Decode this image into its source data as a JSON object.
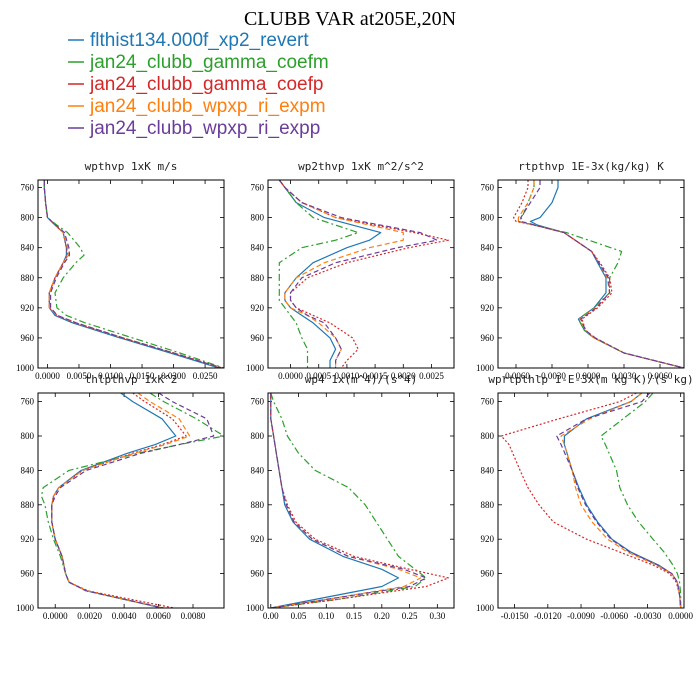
{
  "figure": {
    "title": "CLUBB VAR at205E,20N"
  },
  "legend": [
    {
      "label": "flthist134.000f_xp2_revert",
      "color": "#1f77b4",
      "dash": "solid"
    },
    {
      "label": "jan24_clubb_gamma_coefm",
      "color": "#2ca02c",
      "dash": "dashdot"
    },
    {
      "label": "jan24_clubb_gamma_coefp",
      "color": "#d62728",
      "dash": "dotted"
    },
    {
      "label": "jan24_clubb_wpxp_ri_expm",
      "color": "#ff7f0e",
      "dash": "dashed"
    },
    {
      "label": "jan24_clubb_wpxp_ri_expp",
      "color": "#6a3d9a",
      "dash": "dashed"
    }
  ],
  "chart_data": [
    {
      "type": "line",
      "title": "wpthvp  1xK m/s",
      "xlim": [
        -0.0015,
        0.028
      ],
      "ylim": [
        1000,
        750
      ],
      "xticks": [
        0.0,
        0.005,
        0.01,
        0.015,
        0.02,
        0.025
      ],
      "xtick_labels": [
        "0.0000",
        "0.0050",
        "0.0100",
        "0.0150",
        "0.0200",
        "0.0250"
      ],
      "yticks": [
        760,
        800,
        840,
        880,
        920,
        960,
        1000
      ],
      "ytick_labels": [
        "760",
        "800",
        "840",
        "880",
        "920",
        "960",
        "1000"
      ],
      "y": [
        750,
        760,
        780,
        800,
        810,
        820,
        840,
        850,
        860,
        880,
        900,
        920,
        930,
        940,
        960,
        980,
        1000
      ],
      "series": [
        {
          "values": [
            -0.0005,
            -0.0005,
            -0.0003,
            0.0,
            0.0012,
            0.0025,
            0.003,
            0.003,
            0.0025,
            0.0012,
            0.0003,
            0.0003,
            0.0012,
            0.004,
            0.0115,
            0.0195,
            0.0272
          ]
        },
        {
          "values": [
            -0.0005,
            -0.0005,
            -0.0003,
            0.0,
            0.0015,
            0.0032,
            0.0052,
            0.0058,
            0.0045,
            0.0025,
            0.0012,
            0.0015,
            0.003,
            0.006,
            0.0135,
            0.021,
            0.028
          ]
        },
        {
          "values": [
            -0.0005,
            -0.0005,
            -0.0003,
            0.0,
            0.0012,
            0.0025,
            0.003,
            0.0032,
            0.0025,
            0.0012,
            0.0003,
            0.0003,
            0.0015,
            0.0045,
            0.012,
            0.02,
            0.0278
          ]
        },
        {
          "values": [
            -0.0005,
            -0.0005,
            -0.0003,
            0.0,
            0.0012,
            0.0025,
            0.0032,
            0.0033,
            0.0025,
            0.0012,
            0.0003,
            0.0003,
            0.0015,
            0.0045,
            0.012,
            0.02,
            0.0276
          ]
        },
        {
          "values": [
            -0.0005,
            -0.0005,
            -0.0003,
            0.0,
            0.0013,
            0.0027,
            0.0034,
            0.0035,
            0.0027,
            0.0014,
            0.0005,
            0.0005,
            0.0016,
            0.0046,
            0.012,
            0.02,
            0.0276
          ]
        }
      ]
    },
    {
      "type": "line",
      "title": "wp2thvp  1xK m^2/s^2",
      "xlim": [
        -0.0004,
        0.0029
      ],
      "ylim": [
        1000,
        750
      ],
      "xticks": [
        0.0,
        0.0005,
        0.001,
        0.0015,
        0.002,
        0.0025
      ],
      "xtick_labels": [
        "0.0000",
        "0.0005",
        "0.0010",
        "0.0015",
        "0.0020",
        "0.0025"
      ],
      "yticks": [
        760,
        800,
        840,
        880,
        920,
        960,
        1000
      ],
      "ytick_labels": [
        "760",
        "800",
        "840",
        "880",
        "920",
        "960",
        "1000"
      ],
      "y": [
        750,
        760,
        780,
        800,
        810,
        820,
        830,
        840,
        860,
        880,
        900,
        910,
        920,
        930,
        940,
        960,
        975,
        990,
        1000
      ],
      "series": [
        {
          "values": [
            -0.0002,
            -0.0001,
            0.0001,
            0.0006,
            0.0011,
            0.0016,
            0.0014,
            0.001,
            0.0004,
            0.0001,
            -0.0001,
            -0.0001,
            0.0,
            0.0002,
            0.0004,
            0.0007,
            0.0008,
            0.0007,
            0.0007
          ]
        },
        {
          "values": [
            -0.0002,
            -0.0001,
            0.0001,
            0.0004,
            0.0008,
            0.0012,
            0.0008,
            0.0002,
            -0.0002,
            -0.0002,
            -0.0002,
            -0.0002,
            -0.0001,
            0.0,
            0.0001,
            0.0002,
            0.0003,
            0.0003,
            0.0003
          ]
        },
        {
          "values": [
            -0.0002,
            -0.0001,
            0.0002,
            0.0008,
            0.0015,
            0.0022,
            0.0028,
            0.0021,
            0.001,
            0.0003,
            0.0,
            0.0,
            0.0001,
            0.0004,
            0.0007,
            0.0011,
            0.0012,
            0.001,
            0.0009
          ]
        },
        {
          "values": [
            -0.0002,
            -0.0001,
            0.0002,
            0.0008,
            0.0014,
            0.002,
            0.002,
            0.0014,
            0.0006,
            0.0001,
            -0.0001,
            -0.0001,
            0.0,
            0.0003,
            0.0005,
            0.0008,
            0.0009,
            0.0008,
            0.0008
          ]
        },
        {
          "values": [
            -0.0002,
            -0.0001,
            0.0002,
            0.0009,
            0.0016,
            0.0023,
            0.0026,
            0.0019,
            0.0008,
            0.0002,
            0.0,
            0.0,
            0.0001,
            0.0003,
            0.0006,
            0.0008,
            0.0009,
            0.0008,
            0.0008
          ]
        }
      ]
    },
    {
      "type": "line",
      "title": "rtpthvp  1E-3x(kg/kg) K",
      "xlim": [
        -0.0075,
        0.008
      ],
      "ylim": [
        1000,
        750
      ],
      "xticks": [
        -0.006,
        -0.003,
        0.0,
        0.003,
        0.006
      ],
      "xtick_labels": [
        "-0.0060",
        "-0.0030",
        "0.0000",
        "0.0030",
        "0.0060"
      ],
      "yticks": [
        760,
        800,
        840,
        880,
        920,
        960,
        1000
      ],
      "ytick_labels": [
        "760",
        "800",
        "840",
        "880",
        "920",
        "960",
        "1000"
      ],
      "y": [
        750,
        760,
        780,
        800,
        805,
        810,
        820,
        845,
        860,
        880,
        900,
        920,
        935,
        950,
        960,
        980,
        1000
      ],
      "series": [
        {
          "values": [
            -0.0025,
            -0.0025,
            -0.003,
            -0.004,
            -0.0048,
            -0.0042,
            -0.002,
            0.0003,
            0.0008,
            0.0015,
            0.0015,
            0.0005,
            -0.0008,
            -0.0003,
            0.0005,
            0.003,
            0.008
          ]
        },
        {
          "values": [
            -0.0045,
            -0.0045,
            -0.005,
            -0.0055,
            -0.0058,
            -0.0045,
            -0.0018,
            0.0028,
            0.0025,
            0.0018,
            0.0018,
            0.0005,
            -0.0008,
            -0.0003,
            0.0005,
            0.003,
            0.008
          ]
        },
        {
          "values": [
            -0.005,
            -0.005,
            -0.0055,
            -0.0062,
            -0.006,
            -0.0045,
            -0.002,
            0.0003,
            0.001,
            0.0018,
            0.002,
            0.0008,
            -0.0005,
            -0.0002,
            0.0006,
            0.003,
            0.008
          ]
        },
        {
          "values": [
            -0.0045,
            -0.0045,
            -0.005,
            -0.0058,
            -0.0058,
            -0.0045,
            -0.002,
            0.0003,
            0.0009,
            0.0016,
            0.0018,
            0.0006,
            -0.0007,
            -0.0002,
            0.0005,
            0.003,
            0.008
          ]
        },
        {
          "values": [
            -0.004,
            -0.004,
            -0.0048,
            -0.0056,
            -0.0056,
            -0.0044,
            -0.002,
            0.0003,
            0.0009,
            0.0017,
            0.0018,
            0.0007,
            -0.0006,
            -0.0002,
            0.0006,
            0.003,
            0.008
          ]
        }
      ]
    },
    {
      "type": "line",
      "title": "thlpthvp  1xK^2",
      "xlim": [
        -0.001,
        0.0098
      ],
      "ylim": [
        1000,
        750
      ],
      "xticks": [
        0.0,
        0.002,
        0.004,
        0.006,
        0.008
      ],
      "xtick_labels": [
        "0.0000",
        "0.0020",
        "0.0040",
        "0.0060",
        "0.0080"
      ],
      "yticks": [
        760,
        800,
        840,
        880,
        920,
        960,
        1000
      ],
      "ytick_labels": [
        "760",
        "800",
        "840",
        "880",
        "920",
        "960",
        "1000"
      ],
      "y": [
        750,
        760,
        780,
        800,
        810,
        820,
        840,
        860,
        870,
        880,
        900,
        920,
        940,
        960,
        970,
        980,
        1000
      ],
      "series": [
        {
          "values": [
            0.0038,
            0.0045,
            0.0062,
            0.007,
            0.0058,
            0.0042,
            0.0015,
            0.0002,
            -0.0001,
            -0.0002,
            -0.0002,
            0.0,
            0.0004,
            0.0006,
            0.0008,
            0.0018,
            0.0062
          ]
        },
        {
          "values": [
            0.0055,
            0.0063,
            0.0082,
            0.0098,
            0.0072,
            0.0048,
            0.0008,
            -0.0007,
            -0.0008,
            -0.0006,
            -0.0004,
            -0.0001,
            0.0003,
            0.0006,
            0.0008,
            0.0018,
            0.0062
          ]
        },
        {
          "values": [
            0.0045,
            0.0052,
            0.0068,
            0.0076,
            0.0062,
            0.0045,
            0.0016,
            0.0002,
            -0.0001,
            -0.0002,
            -0.0002,
            0.0,
            0.0004,
            0.0006,
            0.0008,
            0.0019,
            0.0069
          ]
        },
        {
          "values": [
            0.0048,
            0.0055,
            0.0072,
            0.0078,
            0.0064,
            0.0046,
            0.0016,
            0.0002,
            -0.0001,
            -0.0002,
            -0.0002,
            0.0,
            0.0004,
            0.0006,
            0.0008,
            0.0018,
            0.0063
          ]
        },
        {
          "values": [
            0.006,
            0.0068,
            0.0088,
            0.0092,
            0.0072,
            0.005,
            0.0018,
            0.0003,
            0.0,
            -0.0002,
            -0.0002,
            0.0,
            0.0004,
            0.0006,
            0.0008,
            0.0018,
            0.0063
          ]
        }
      ]
    },
    {
      "type": "line",
      "title": "wp4  1x(m^4)/(s^4)",
      "xlim": [
        -0.005,
        0.33
      ],
      "ylim": [
        1000,
        750
      ],
      "xticks": [
        0.0,
        0.05,
        0.1,
        0.15,
        0.2,
        0.25,
        0.3
      ],
      "xtick_labels": [
        "0.00",
        "0.05",
        "0.10",
        "0.15",
        "0.20",
        "0.25",
        "0.30"
      ],
      "yticks": [
        760,
        800,
        840,
        880,
        920,
        960,
        1000
      ],
      "ytick_labels": [
        "760",
        "800",
        "840",
        "880",
        "920",
        "960",
        "1000"
      ],
      "y": [
        750,
        760,
        780,
        800,
        820,
        840,
        860,
        880,
        900,
        920,
        940,
        955,
        965,
        975,
        990,
        1000
      ],
      "series": [
        {
          "values": [
            0.0,
            0.0,
            0.0,
            0.005,
            0.01,
            0.015,
            0.02,
            0.025,
            0.04,
            0.07,
            0.13,
            0.2,
            0.23,
            0.2,
            0.08,
            0.0
          ]
        },
        {
          "values": [
            0.0,
            0.005,
            0.02,
            0.03,
            0.05,
            0.08,
            0.14,
            0.17,
            0.19,
            0.21,
            0.23,
            0.26,
            0.28,
            0.26,
            0.12,
            0.0
          ]
        },
        {
          "values": [
            0.0,
            0.0,
            0.0,
            0.005,
            0.01,
            0.015,
            0.02,
            0.03,
            0.045,
            0.08,
            0.15,
            0.25,
            0.32,
            0.28,
            0.12,
            0.0
          ]
        },
        {
          "values": [
            0.0,
            0.0,
            0.0,
            0.005,
            0.01,
            0.015,
            0.02,
            0.028,
            0.042,
            0.075,
            0.14,
            0.23,
            0.27,
            0.24,
            0.1,
            0.0
          ]
        },
        {
          "values": [
            0.0,
            0.0,
            0.0,
            0.005,
            0.01,
            0.015,
            0.02,
            0.028,
            0.042,
            0.075,
            0.14,
            0.24,
            0.28,
            0.25,
            0.1,
            0.0
          ]
        }
      ]
    },
    {
      "type": "line",
      "title": "wprtpthlp  1-E-3x(m kg K)/(s kg)",
      "xlim": [
        -0.0165,
        0.0003
      ],
      "ylim": [
        1000,
        750
      ],
      "xticks": [
        -0.015,
        -0.012,
        -0.009,
        -0.006,
        -0.003,
        0.0
      ],
      "xtick_labels": [
        "-0.0150",
        "-0.0120",
        "-0.0090",
        "-0.0060",
        "-0.0030",
        "0.0000"
      ],
      "yticks": [
        760,
        800,
        840,
        880,
        920,
        960,
        1000
      ],
      "ytick_labels": [
        "760",
        "800",
        "840",
        "880",
        "920",
        "960",
        "1000"
      ],
      "y": [
        750,
        760,
        780,
        800,
        810,
        840,
        860,
        880,
        900,
        920,
        935,
        950,
        960,
        970,
        985,
        1000
      ],
      "series": [
        {
          "values": [
            -0.0035,
            -0.0045,
            -0.0085,
            -0.0105,
            -0.0105,
            -0.0098,
            -0.0092,
            -0.0085,
            -0.0075,
            -0.0062,
            -0.0045,
            -0.002,
            -0.0008,
            -0.0003,
            -0.0001,
            0.0
          ]
        },
        {
          "values": [
            -0.0025,
            -0.0032,
            -0.0052,
            -0.0072,
            -0.0068,
            -0.0058,
            -0.0055,
            -0.0048,
            -0.0038,
            -0.0025,
            -0.0015,
            -0.0007,
            -0.0003,
            -0.0001,
            0.0,
            0.0
          ]
        },
        {
          "values": [
            -0.004,
            -0.0055,
            -0.011,
            -0.0162,
            -0.0155,
            -0.0145,
            -0.0138,
            -0.0128,
            -0.0115,
            -0.0085,
            -0.0055,
            -0.0025,
            -0.001,
            -0.0004,
            -0.0001,
            0.0
          ]
        },
        {
          "values": [
            -0.0035,
            -0.0045,
            -0.0082,
            -0.0108,
            -0.0105,
            -0.0098,
            -0.0095,
            -0.009,
            -0.008,
            -0.0066,
            -0.0048,
            -0.0022,
            -0.0008,
            -0.0003,
            -0.0001,
            0.0
          ]
        },
        {
          "values": [
            -0.0028,
            -0.0035,
            -0.0085,
            -0.0112,
            -0.0108,
            -0.0098,
            -0.0093,
            -0.0086,
            -0.0076,
            -0.0063,
            -0.0046,
            -0.0021,
            -0.0008,
            -0.0003,
            -0.0001,
            0.0
          ]
        }
      ]
    }
  ]
}
